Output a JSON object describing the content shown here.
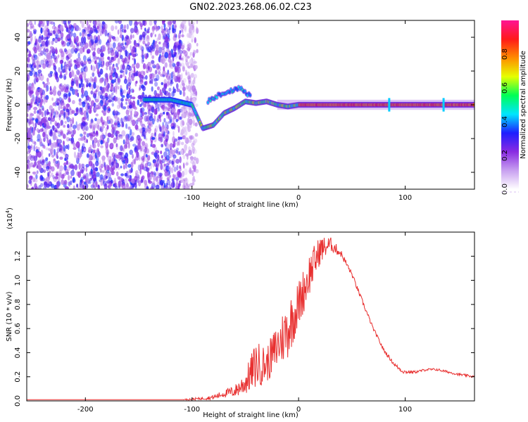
{
  "title": "GN02.2023.268.06.02.C23",
  "chart_data": [
    {
      "type": "heatmap",
      "name": "spectrogram",
      "xlabel": "Height of straight line (km)",
      "ylabel": "Frequency (Hz)",
      "xlim": [
        -255,
        165
      ],
      "ylim": [
        -50,
        50
      ],
      "xticks": [
        -200,
        -100,
        0,
        100
      ],
      "yticks": [
        -40,
        -20,
        0,
        20,
        40
      ],
      "colorbar": {
        "label": "Normalized spectral amplitude",
        "range": [
          0.0,
          1.0
        ],
        "ticks": [
          0.0,
          0.2,
          0.4,
          0.6,
          0.8
        ],
        "colors": [
          "#ffffff",
          "#c8a0f0",
          "#8a2be2",
          "#1e1eff",
          "#00e5ff",
          "#00ff55",
          "#e6ff00",
          "#ff8c00",
          "#ff1a1a",
          "#ff1493"
        ]
      },
      "noise_region": {
        "x": [
          -255,
          -95
        ],
        "y": [
          -50,
          50
        ]
      },
      "signal_track": [
        {
          "x": -140,
          "y": 3
        },
        {
          "x": -120,
          "y": 3
        },
        {
          "x": -100,
          "y": 0
        },
        {
          "x": -90,
          "y": -14
        },
        {
          "x": -80,
          "y": -12
        },
        {
          "x": -70,
          "y": -5
        },
        {
          "x": -60,
          "y": -2
        },
        {
          "x": -50,
          "y": 2
        },
        {
          "x": -40,
          "y": 1
        },
        {
          "x": -30,
          "y": 2
        },
        {
          "x": -20,
          "y": 0
        },
        {
          "x": -10,
          "y": -1
        },
        {
          "x": 0,
          "y": 0
        },
        {
          "x": 165,
          "y": 0
        }
      ],
      "upper_branch": [
        {
          "x": -85,
          "y": 2
        },
        {
          "x": -75,
          "y": 6
        },
        {
          "x": -65,
          "y": 8
        },
        {
          "x": -55,
          "y": 10
        },
        {
          "x": -45,
          "y": 5
        }
      ],
      "markers": [
        85,
        136
      ]
    },
    {
      "type": "line",
      "name": "snr",
      "xlabel": "Height of straight line (km)",
      "ylabel": "SNR (10 * v/v)",
      "multiplier": "(x10^4)",
      "xlim": [
        -255,
        165
      ],
      "ylim": [
        0,
        1.4
      ],
      "xticks": [
        -200,
        -100,
        0,
        100
      ],
      "yticks": [
        0.0,
        0.2,
        0.4,
        0.6,
        0.8,
        1.0,
        1.2
      ],
      "color": "#e83030",
      "x": [
        -255,
        -200,
        -150,
        -110,
        -100,
        -90,
        -80,
        -70,
        -60,
        -50,
        -40,
        -30,
        -20,
        -10,
        0,
        10,
        20,
        30,
        40,
        50,
        60,
        70,
        80,
        90,
        97,
        100,
        110,
        120,
        130,
        140,
        150,
        165
      ],
      "y": [
        0.01,
        0.01,
        0.01,
        0.01,
        0.015,
        0.02,
        0.03,
        0.06,
        0.08,
        0.15,
        0.3,
        0.3,
        0.45,
        0.6,
        0.8,
        1.05,
        1.25,
        1.3,
        1.22,
        1.05,
        0.82,
        0.6,
        0.42,
        0.3,
        0.25,
        0.24,
        0.24,
        0.26,
        0.26,
        0.24,
        0.22,
        0.2
      ],
      "jitter": [
        0,
        0,
        0,
        0,
        0.01,
        0.01,
        0.02,
        0.03,
        0.05,
        0.1,
        0.2,
        0.15,
        0.2,
        0.25,
        0.2,
        0.18,
        0.12,
        0.06,
        0.03,
        0.02,
        0.02,
        0.015,
        0.015,
        0.015,
        0.02,
        0.015,
        0.01,
        0.01,
        0.01,
        0.01,
        0.01,
        0.01
      ]
    }
  ]
}
